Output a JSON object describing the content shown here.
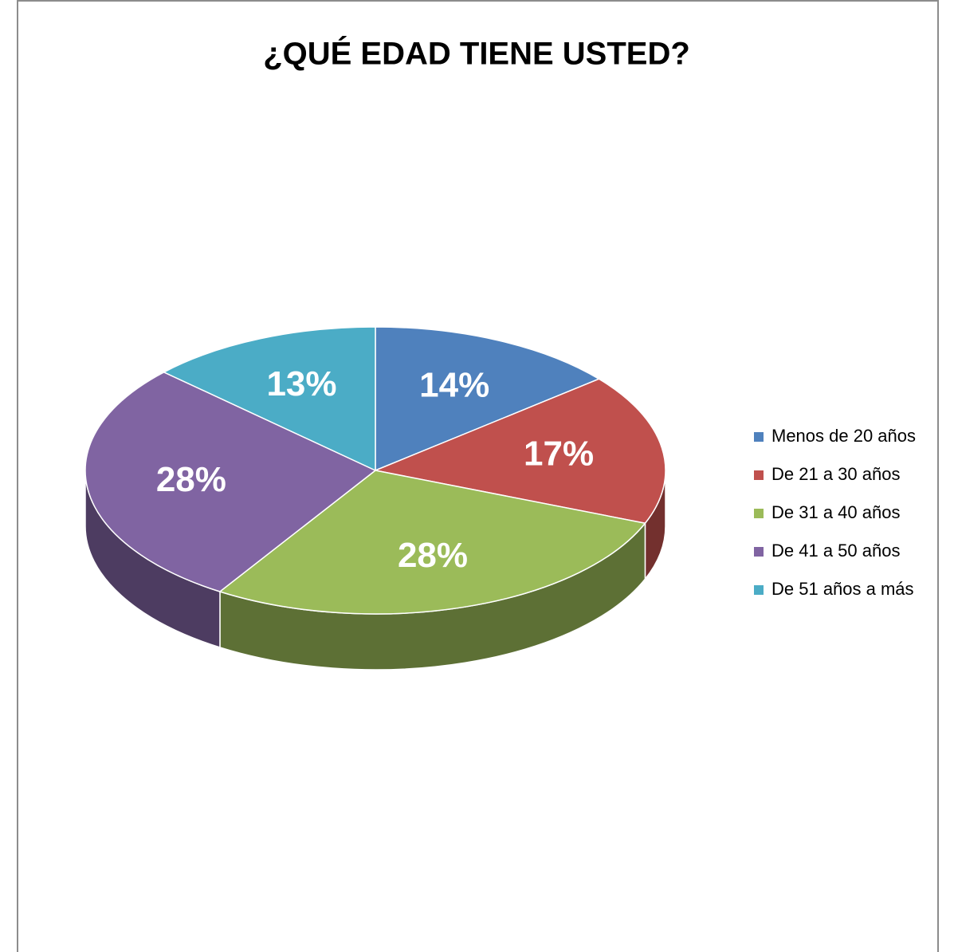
{
  "chart_data": {
    "type": "pie",
    "title": "¿QUÉ EDAD TIENE USTED?",
    "categories": [
      "Menos de 20 años",
      "De 21 a 30 años",
      "De 31 a 40 años",
      "De 41 a 50 años",
      "De 51 años a más"
    ],
    "values": [
      14,
      17,
      28,
      28,
      13
    ],
    "value_labels": [
      "14%",
      "17%",
      "28%",
      "28%",
      "13%"
    ],
    "colors": [
      "#4f81bd",
      "#c0504d",
      "#9bbb59",
      "#8064a2",
      "#4bacc6"
    ],
    "legend": "right"
  }
}
